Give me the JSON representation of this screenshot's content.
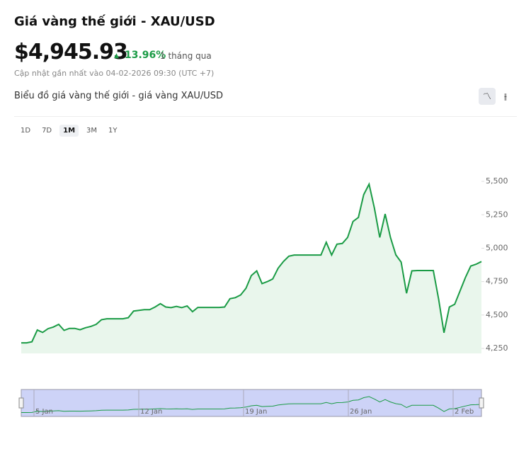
{
  "header": {
    "title": "Giá vàng thế giới - XAU/USD",
    "price": "$4,945.93",
    "change": "13.96%",
    "period": "1 tháng qua",
    "updated": "Cập nhật gần nhất vào 04-02-2026 09:30 (UTC +7)"
  },
  "section_title": "Biểu đồ giá vàng thế giới - giá vàng XAU/USD",
  "ranges": [
    "1D",
    "7D",
    "1M",
    "3M",
    "1Y"
  ],
  "selected_range": 2,
  "chart_data": {
    "type": "line",
    "color": "#1a9b45",
    "area": true,
    "values": [
      4292,
      4292,
      4300,
      4388,
      4370,
      4398,
      4410,
      4430,
      4385,
      4400,
      4400,
      4390,
      4405,
      4415,
      4430,
      4465,
      4472,
      4472,
      4472,
      4472,
      4480,
      4530,
      4535,
      4540,
      4540,
      4560,
      4585,
      4560,
      4555,
      4565,
      4555,
      4568,
      4525,
      4557,
      4557,
      4557,
      4557,
      4557,
      4560,
      4622,
      4630,
      4650,
      4700,
      4795,
      4830,
      4735,
      4750,
      4770,
      4850,
      4900,
      4940,
      4949,
      4949,
      4949,
      4949,
      4949,
      4949,
      5044,
      4949,
      5030,
      5035,
      5080,
      5200,
      5230,
      5400,
      5479,
      5300,
      5080,
      5256,
      5080,
      4950,
      4896,
      4663,
      4830,
      4833,
      4833,
      4833,
      4833,
      4620,
      4367,
      4560,
      4580,
      4680,
      4780,
      4866,
      4880,
      4900
    ],
    "ylim": [
      4213,
      5797
    ],
    "yticks": [
      {
        "value": 4250,
        "label": "4,250"
      },
      {
        "value": 4500,
        "label": "4,500"
      },
      {
        "value": 4750,
        "label": "4,750"
      },
      {
        "value": 5000,
        "label": "5,000"
      },
      {
        "value": 5250,
        "label": "5,250"
      },
      {
        "value": 5500,
        "label": "5,500"
      }
    ],
    "navigator_labels": [
      "5 Jan",
      "12 Jan",
      "19 Jan",
      "26 Jan",
      "2 Feb"
    ]
  }
}
